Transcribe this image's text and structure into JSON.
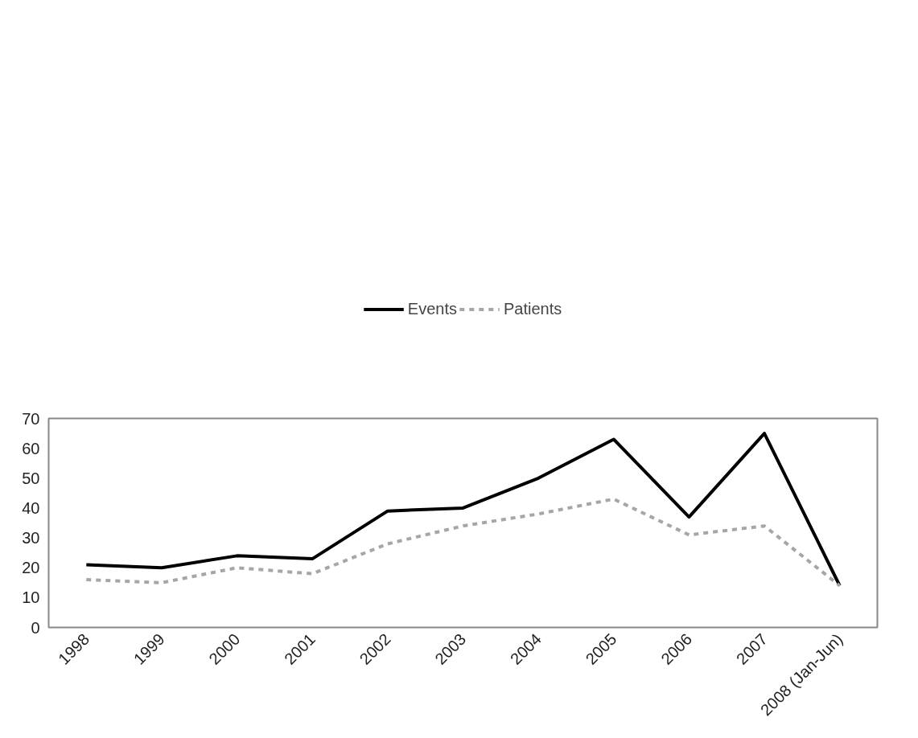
{
  "chart_data": {
    "type": "line",
    "categories": [
      "1998",
      "1999",
      "2000",
      "2001",
      "2002",
      "2003",
      "2004",
      "2005",
      "2006",
      "2007",
      "2008 (Jan-Jun)"
    ],
    "series": [
      {
        "name": "Events",
        "color": "#000000",
        "line_style": "solid",
        "values": [
          21,
          20,
          24,
          23,
          39,
          40,
          50,
          63,
          37,
          65,
          14
        ]
      },
      {
        "name": "Patients",
        "color": "#a6a6a6",
        "line_style": "dashed",
        "values": [
          16,
          15,
          20,
          18,
          28,
          34,
          38,
          43,
          31,
          34,
          14
        ]
      }
    ],
    "ylim": [
      0,
      70
    ],
    "yticks": [
      0,
      10,
      20,
      30,
      40,
      50,
      60,
      70
    ],
    "grid": false,
    "legend": "top"
  }
}
